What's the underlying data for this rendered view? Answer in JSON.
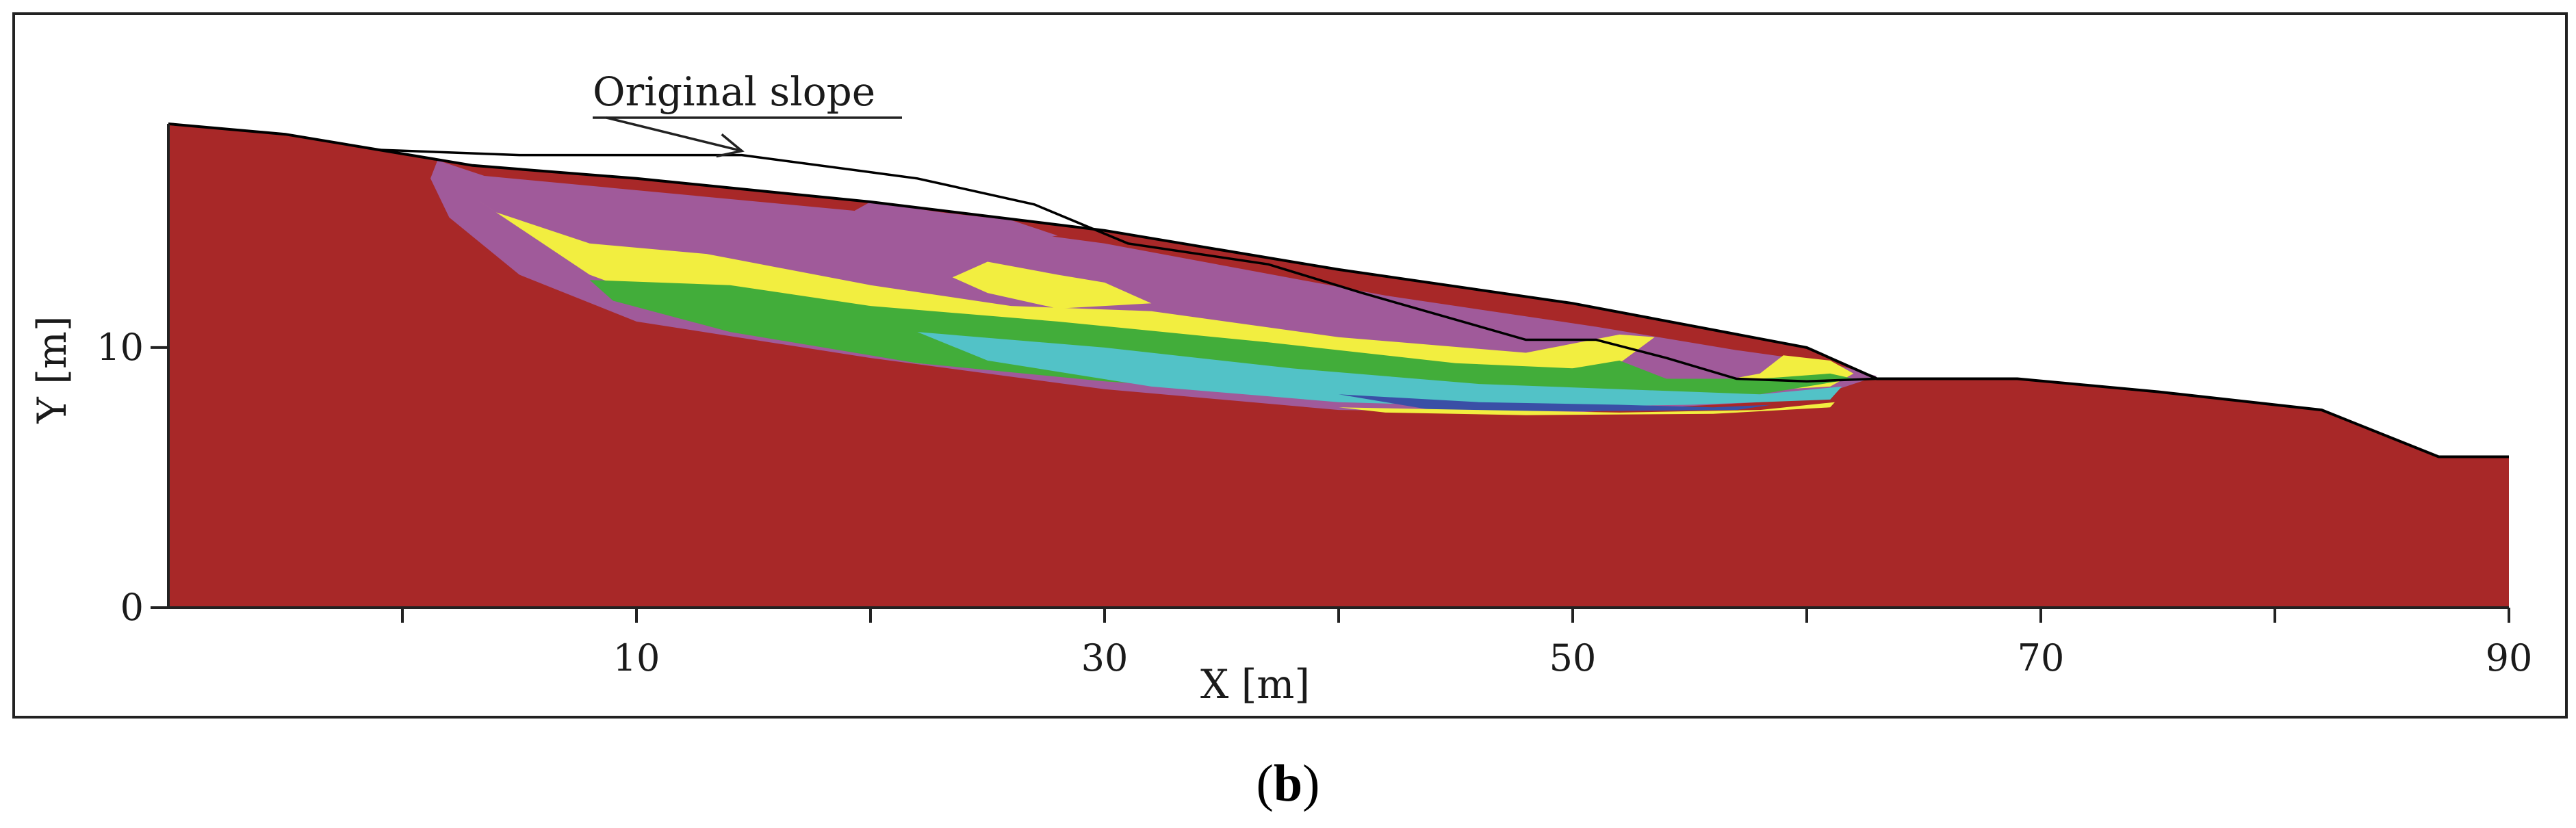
{
  "chart_data": {
    "type": "area",
    "panel_label": {
      "open": "(",
      "letter": "b",
      "close": ")"
    },
    "xlabel": "X [m]",
    "ylabel": "Y [m]",
    "xlim": [
      -10,
      90
    ],
    "ylim": [
      0,
      18.6
    ],
    "x_ticks": [
      10,
      30,
      50,
      70,
      90
    ],
    "x_minor_ticks": [
      0,
      20,
      40,
      60,
      80
    ],
    "y_ticks": [
      0,
      10
    ],
    "annotation": {
      "text": "Original slope",
      "target": [
        14.5,
        17.4
      ]
    },
    "colors": {
      "slope_body": "#a82828",
      "purple": "#a05a9a",
      "yellow": "#f2ee40",
      "green": "#42ad3a",
      "cyan": "#52c2c7",
      "blue": "#3a4fa6",
      "outline": "#000000"
    },
    "deformed_surface": [
      [
        -10,
        18.6
      ],
      [
        -5,
        18.2
      ],
      [
        -1,
        17.6
      ],
      [
        3,
        17.0
      ],
      [
        10,
        16.5
      ],
      [
        20,
        15.6
      ],
      [
        30,
        14.5
      ],
      [
        40,
        13.0
      ],
      [
        50,
        11.7
      ],
      [
        60,
        10.0
      ],
      [
        63,
        8.8
      ],
      [
        66,
        8.8
      ],
      [
        69,
        8.8
      ],
      [
        75,
        8.3
      ],
      [
        82,
        7.6
      ],
      [
        87,
        5.8
      ],
      [
        90,
        5.8
      ]
    ],
    "original_slope": [
      [
        -1,
        17.6
      ],
      [
        5,
        17.4
      ],
      [
        14.5,
        17.4
      ],
      [
        22,
        16.5
      ],
      [
        27,
        15.5
      ],
      [
        31,
        14.0
      ],
      [
        37,
        13.2
      ],
      [
        41,
        12.1
      ],
      [
        48,
        10.3
      ],
      [
        51,
        10.3
      ],
      [
        54,
        9.6
      ],
      [
        57,
        8.8
      ],
      [
        60,
        8.7
      ],
      [
        63,
        8.8
      ]
    ],
    "zones": [
      {
        "name": "purple",
        "outline": [
          [
            1.5,
            17.2
          ],
          [
            3.5,
            16.6
          ],
          [
            20,
            15.2
          ],
          [
            30,
            14.0
          ],
          [
            42,
            12.0
          ],
          [
            51,
            10.8
          ],
          [
            57,
            9.9
          ],
          [
            61,
            9.4
          ],
          [
            63,
            8.9
          ],
          [
            60,
            8.0
          ],
          [
            50,
            7.5
          ],
          [
            40,
            7.6
          ],
          [
            30,
            8.4
          ],
          [
            20,
            9.6
          ],
          [
            10,
            11.0
          ],
          [
            5,
            12.8
          ],
          [
            2,
            15.0
          ],
          [
            1.2,
            16.5
          ]
        ]
      },
      {
        "name": "purple",
        "outline": [
          [
            20,
            15.6
          ],
          [
            23,
            15.2
          ],
          [
            26,
            14.9
          ],
          [
            28,
            14.3
          ],
          [
            24,
            13.8
          ],
          [
            22,
            13.2
          ],
          [
            20,
            13.3
          ],
          [
            19,
            14.2
          ],
          [
            19.2,
            15.2
          ]
        ]
      },
      {
        "name": "yellow",
        "outline": [
          [
            3,
            15.8
          ],
          [
            4,
            15.2
          ],
          [
            8,
            14.0
          ],
          [
            13,
            13.6
          ],
          [
            20,
            12.4
          ],
          [
            26,
            11.6
          ],
          [
            32,
            11.4
          ],
          [
            40,
            10.4
          ],
          [
            48,
            9.8
          ],
          [
            52,
            10.5
          ],
          [
            53.5,
            10.4
          ],
          [
            52,
            9.4
          ],
          [
            47,
            8.9
          ],
          [
            40,
            8.4
          ],
          [
            30,
            8.8
          ],
          [
            22,
            9.4
          ],
          [
            14,
            10.8
          ],
          [
            8,
            12.8
          ]
        ]
      },
      {
        "name": "yellow",
        "outline": [
          [
            25,
            13.3
          ],
          [
            28,
            12.8
          ],
          [
            30,
            12.5
          ],
          [
            32,
            11.7
          ],
          [
            28,
            11.5
          ],
          [
            25,
            12.1
          ],
          [
            23.5,
            12.7
          ]
        ]
      },
      {
        "name": "yellow",
        "outline": [
          [
            59,
            9.7
          ],
          [
            61,
            9.5
          ],
          [
            62,
            9.0
          ],
          [
            61,
            8.5
          ],
          [
            57,
            8.3
          ],
          [
            55,
            8.5
          ],
          [
            58,
            9.0
          ]
        ]
      },
      {
        "name": "green",
        "outline": [
          [
            8,
            12.6
          ],
          [
            14,
            12.4
          ],
          [
            20,
            11.6
          ],
          [
            28,
            11.0
          ],
          [
            37,
            10.2
          ],
          [
            45,
            9.4
          ],
          [
            50,
            9.2
          ],
          [
            52,
            9.5
          ],
          [
            54,
            8.8
          ],
          [
            58,
            8.8
          ],
          [
            61,
            9.0
          ],
          [
            62,
            8.8
          ],
          [
            58,
            8.2
          ],
          [
            50,
            7.8
          ],
          [
            40,
            8.1
          ],
          [
            30,
            8.7
          ],
          [
            22,
            9.4
          ],
          [
            14,
            10.6
          ],
          [
            9,
            11.8
          ]
        ]
      },
      {
        "name": "cyan",
        "outline": [
          [
            22,
            10.6
          ],
          [
            30,
            10.0
          ],
          [
            38,
            9.2
          ],
          [
            46,
            8.6
          ],
          [
            52,
            8.4
          ],
          [
            58,
            8.2
          ],
          [
            61.5,
            8.5
          ],
          [
            61,
            8.0
          ],
          [
            55,
            7.8
          ],
          [
            48,
            7.7
          ],
          [
            40,
            7.9
          ],
          [
            32,
            8.5
          ],
          [
            25,
            9.5
          ]
        ]
      },
      {
        "name": "blue",
        "outline": [
          [
            40,
            8.2
          ],
          [
            46,
            7.9
          ],
          [
            52,
            7.8
          ],
          [
            56,
            7.7
          ],
          [
            58.5,
            7.8
          ],
          [
            57,
            7.6
          ],
          [
            50,
            7.55
          ],
          [
            44,
            7.6
          ]
        ]
      },
      {
        "name": "yellow",
        "outline": [
          [
            40,
            7.7
          ],
          [
            46,
            7.6
          ],
          [
            52,
            7.5
          ],
          [
            58,
            7.6
          ],
          [
            61.2,
            7.9
          ],
          [
            61,
            7.7
          ],
          [
            56,
            7.45
          ],
          [
            48,
            7.4
          ],
          [
            42,
            7.5
          ]
        ]
      }
    ]
  }
}
